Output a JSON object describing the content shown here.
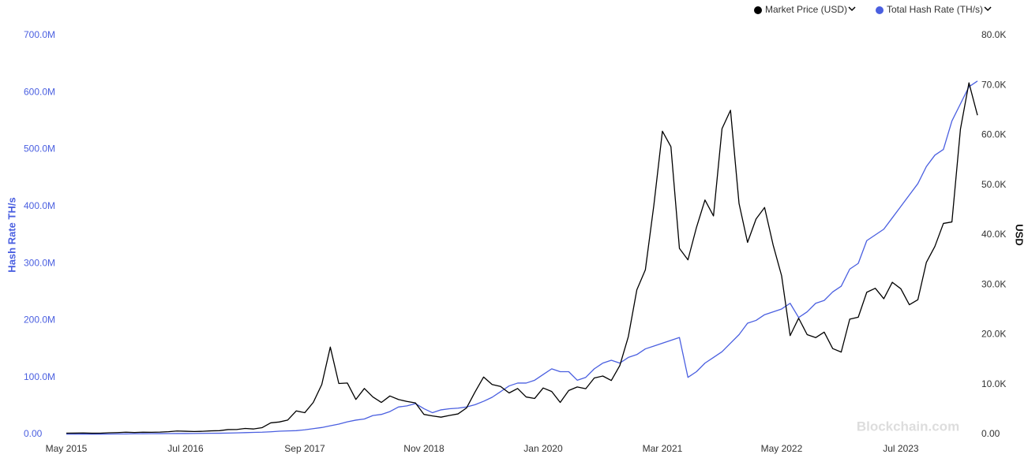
{
  "chart_data": {
    "type": "line",
    "x": [
      "2015-05",
      "2015-06",
      "2015-07",
      "2015-08",
      "2015-09",
      "2015-10",
      "2015-11",
      "2015-12",
      "2016-01",
      "2016-02",
      "2016-03",
      "2016-04",
      "2016-05",
      "2016-06",
      "2016-07",
      "2016-08",
      "2016-09",
      "2016-10",
      "2016-11",
      "2016-12",
      "2017-01",
      "2017-02",
      "2017-03",
      "2017-04",
      "2017-05",
      "2017-06",
      "2017-07",
      "2017-08",
      "2017-09",
      "2017-10",
      "2017-11",
      "2017-12",
      "2018-01",
      "2018-02",
      "2018-03",
      "2018-04",
      "2018-05",
      "2018-06",
      "2018-07",
      "2018-08",
      "2018-09",
      "2018-10",
      "2018-11",
      "2018-12",
      "2019-01",
      "2019-02",
      "2019-03",
      "2019-04",
      "2019-05",
      "2019-06",
      "2019-07",
      "2019-08",
      "2019-09",
      "2019-10",
      "2019-11",
      "2019-12",
      "2020-01",
      "2020-02",
      "2020-03",
      "2020-04",
      "2020-05",
      "2020-06",
      "2020-07",
      "2020-08",
      "2020-09",
      "2020-10",
      "2020-11",
      "2020-12",
      "2021-01",
      "2021-02",
      "2021-03",
      "2021-04",
      "2021-05",
      "2021-06",
      "2021-07",
      "2021-08",
      "2021-09",
      "2021-10",
      "2021-11",
      "2021-12",
      "2022-01",
      "2022-02",
      "2022-03",
      "2022-04",
      "2022-05",
      "2022-06",
      "2022-07",
      "2022-08",
      "2022-09",
      "2022-10",
      "2022-11",
      "2022-12",
      "2023-01",
      "2023-02",
      "2023-03",
      "2023-04",
      "2023-05",
      "2023-06",
      "2023-07",
      "2023-08",
      "2023-09",
      "2023-10",
      "2023-11",
      "2023-12",
      "2024-01",
      "2024-02",
      "2024-03",
      "2024-04"
    ],
    "series": [
      {
        "name": "Market Price (USD)",
        "color": "#000000",
        "axis": "y2",
        "values": [
          240,
          250,
          280,
          230,
          235,
          315,
          360,
          430,
          370,
          440,
          415,
          450,
          530,
          670,
          620,
          575,
          610,
          700,
          740,
          960,
          970,
          1190,
          1080,
          1350,
          2300,
          2480,
          2870,
          4700,
          4340,
          6400,
          10000,
          17500,
          10200,
          10300,
          7000,
          9200,
          7500,
          6400,
          7700,
          7000,
          6600,
          6300,
          4000,
          3700,
          3450,
          3800,
          4100,
          5300,
          8500,
          11500,
          10000,
          9600,
          8300,
          9200,
          7500,
          7200,
          9300,
          8600,
          6400,
          8800,
          9500,
          9150,
          11300,
          11700,
          10800,
          13800,
          19600,
          29000,
          33000,
          46000,
          60800,
          57700,
          37300,
          35000,
          41500,
          47000,
          43800,
          61300,
          65000,
          46300,
          38500,
          43200,
          45500,
          38000,
          31800,
          19800,
          23300,
          20000,
          19400,
          20500,
          17200,
          16500,
          23100,
          23500,
          28500,
          29300,
          27200,
          30500,
          29200,
          26000,
          27000,
          34500,
          37700,
          42300,
          42600,
          61200,
          70500,
          64000
        ]
      },
      {
        "name": "Total Hash Rate (TH/s)",
        "color": "#4a5fe0",
        "axis": "y",
        "values": [
          350000.0,
          370000.0,
          400000.0,
          430000.0,
          450000.0,
          500000.0,
          650000.0,
          800000.0,
          1000000.0,
          1100000.0,
          1200000.0,
          1300000.0,
          1400000.0,
          1500000.0,
          1500000.0,
          1600000.0,
          1700000.0,
          1900000.0,
          2000000.0,
          2300000.0,
          2600000.0,
          3000000.0,
          3500000.0,
          3800000.0,
          4500000.0,
          5500000.0,
          6000000.0,
          6500000.0,
          8000000.0,
          10000000.0,
          12000000.0,
          15000000.0,
          18000000.0,
          22000000.0,
          25000000.0,
          27000000.0,
          33000000.0,
          35000000.0,
          40000000.0,
          48000000.0,
          50000000.0,
          54000000.0,
          45000000.0,
          38000000.0,
          43000000.0,
          45000000.0,
          46000000.0,
          48000000.0,
          52000000.0,
          58000000.0,
          65000000.0,
          75000000.0,
          85000000.0,
          90000000.0,
          90000000.0,
          95000000.0,
          105000000.0,
          115000000.0,
          110000000.0,
          110000000.0,
          95000000.0,
          100000000.0,
          115000000.0,
          125000000.0,
          130000000.0,
          125000000.0,
          135000000.0,
          140000000.0,
          150000000.0,
          155000000.0,
          160000000.0,
          165000000.0,
          170000000.0,
          100000000.0,
          110000000.0,
          125000000.0,
          135000000.0,
          145000000.0,
          160000000.0,
          175000000.0,
          195000000.0,
          200000000.0,
          210000000.0,
          215000000.0,
          220000000.0,
          230000000.0,
          205000000.0,
          215000000.0,
          230000000.0,
          235000000.0,
          250000000.0,
          260000000.0,
          290000000.0,
          300000000.0,
          340000000.0,
          350000000.0,
          360000000.0,
          380000000.0,
          400000000.0,
          420000000.0,
          440000000.0,
          470000000.0,
          490000000.0,
          500000000.0,
          550000000.0,
          580000000.0,
          610000000.0,
          620000000.0
        ]
      }
    ],
    "xlim": [
      "2015-05",
      "2024-04"
    ],
    "xticks": [
      {
        "value": "2015-05",
        "label": "May 2015"
      },
      {
        "value": "2016-07",
        "label": "Jul 2016"
      },
      {
        "value": "2017-09",
        "label": "Sep 2017"
      },
      {
        "value": "2018-11",
        "label": "Nov 2018"
      },
      {
        "value": "2020-01",
        "label": "Jan 2020"
      },
      {
        "value": "2021-03",
        "label": "Mar 2021"
      },
      {
        "value": "2022-05",
        "label": "May 2022"
      },
      {
        "value": "2023-07",
        "label": "Jul 2023"
      }
    ],
    "ylim": [
      0,
      700000000
    ],
    "yticks": [
      {
        "value": 0,
        "label": "0.00"
      },
      {
        "value": 100000000,
        "label": "100.0M"
      },
      {
        "value": 200000000,
        "label": "200.0M"
      },
      {
        "value": 300000000,
        "label": "300.0M"
      },
      {
        "value": 400000000,
        "label": "400.0M"
      },
      {
        "value": 500000000,
        "label": "500.0M"
      },
      {
        "value": 600000000,
        "label": "600.0M"
      },
      {
        "value": 700000000,
        "label": "700.0M"
      }
    ],
    "y2lim": [
      0,
      80000
    ],
    "y2ticks": [
      {
        "value": 0,
        "label": "0.00"
      },
      {
        "value": 10000,
        "label": "10.0K"
      },
      {
        "value": 20000,
        "label": "20.0K"
      },
      {
        "value": 30000,
        "label": "30.0K"
      },
      {
        "value": 40000,
        "label": "40.0K"
      },
      {
        "value": 50000,
        "label": "50.0K"
      },
      {
        "value": 60000,
        "label": "60.0K"
      },
      {
        "value": 70000,
        "label": "70.0K"
      },
      {
        "value": 80000,
        "label": "80.0K"
      }
    ],
    "ylabel": "Hash Rate TH/s",
    "y2label": "USD",
    "watermark": "Blockchain.com"
  }
}
